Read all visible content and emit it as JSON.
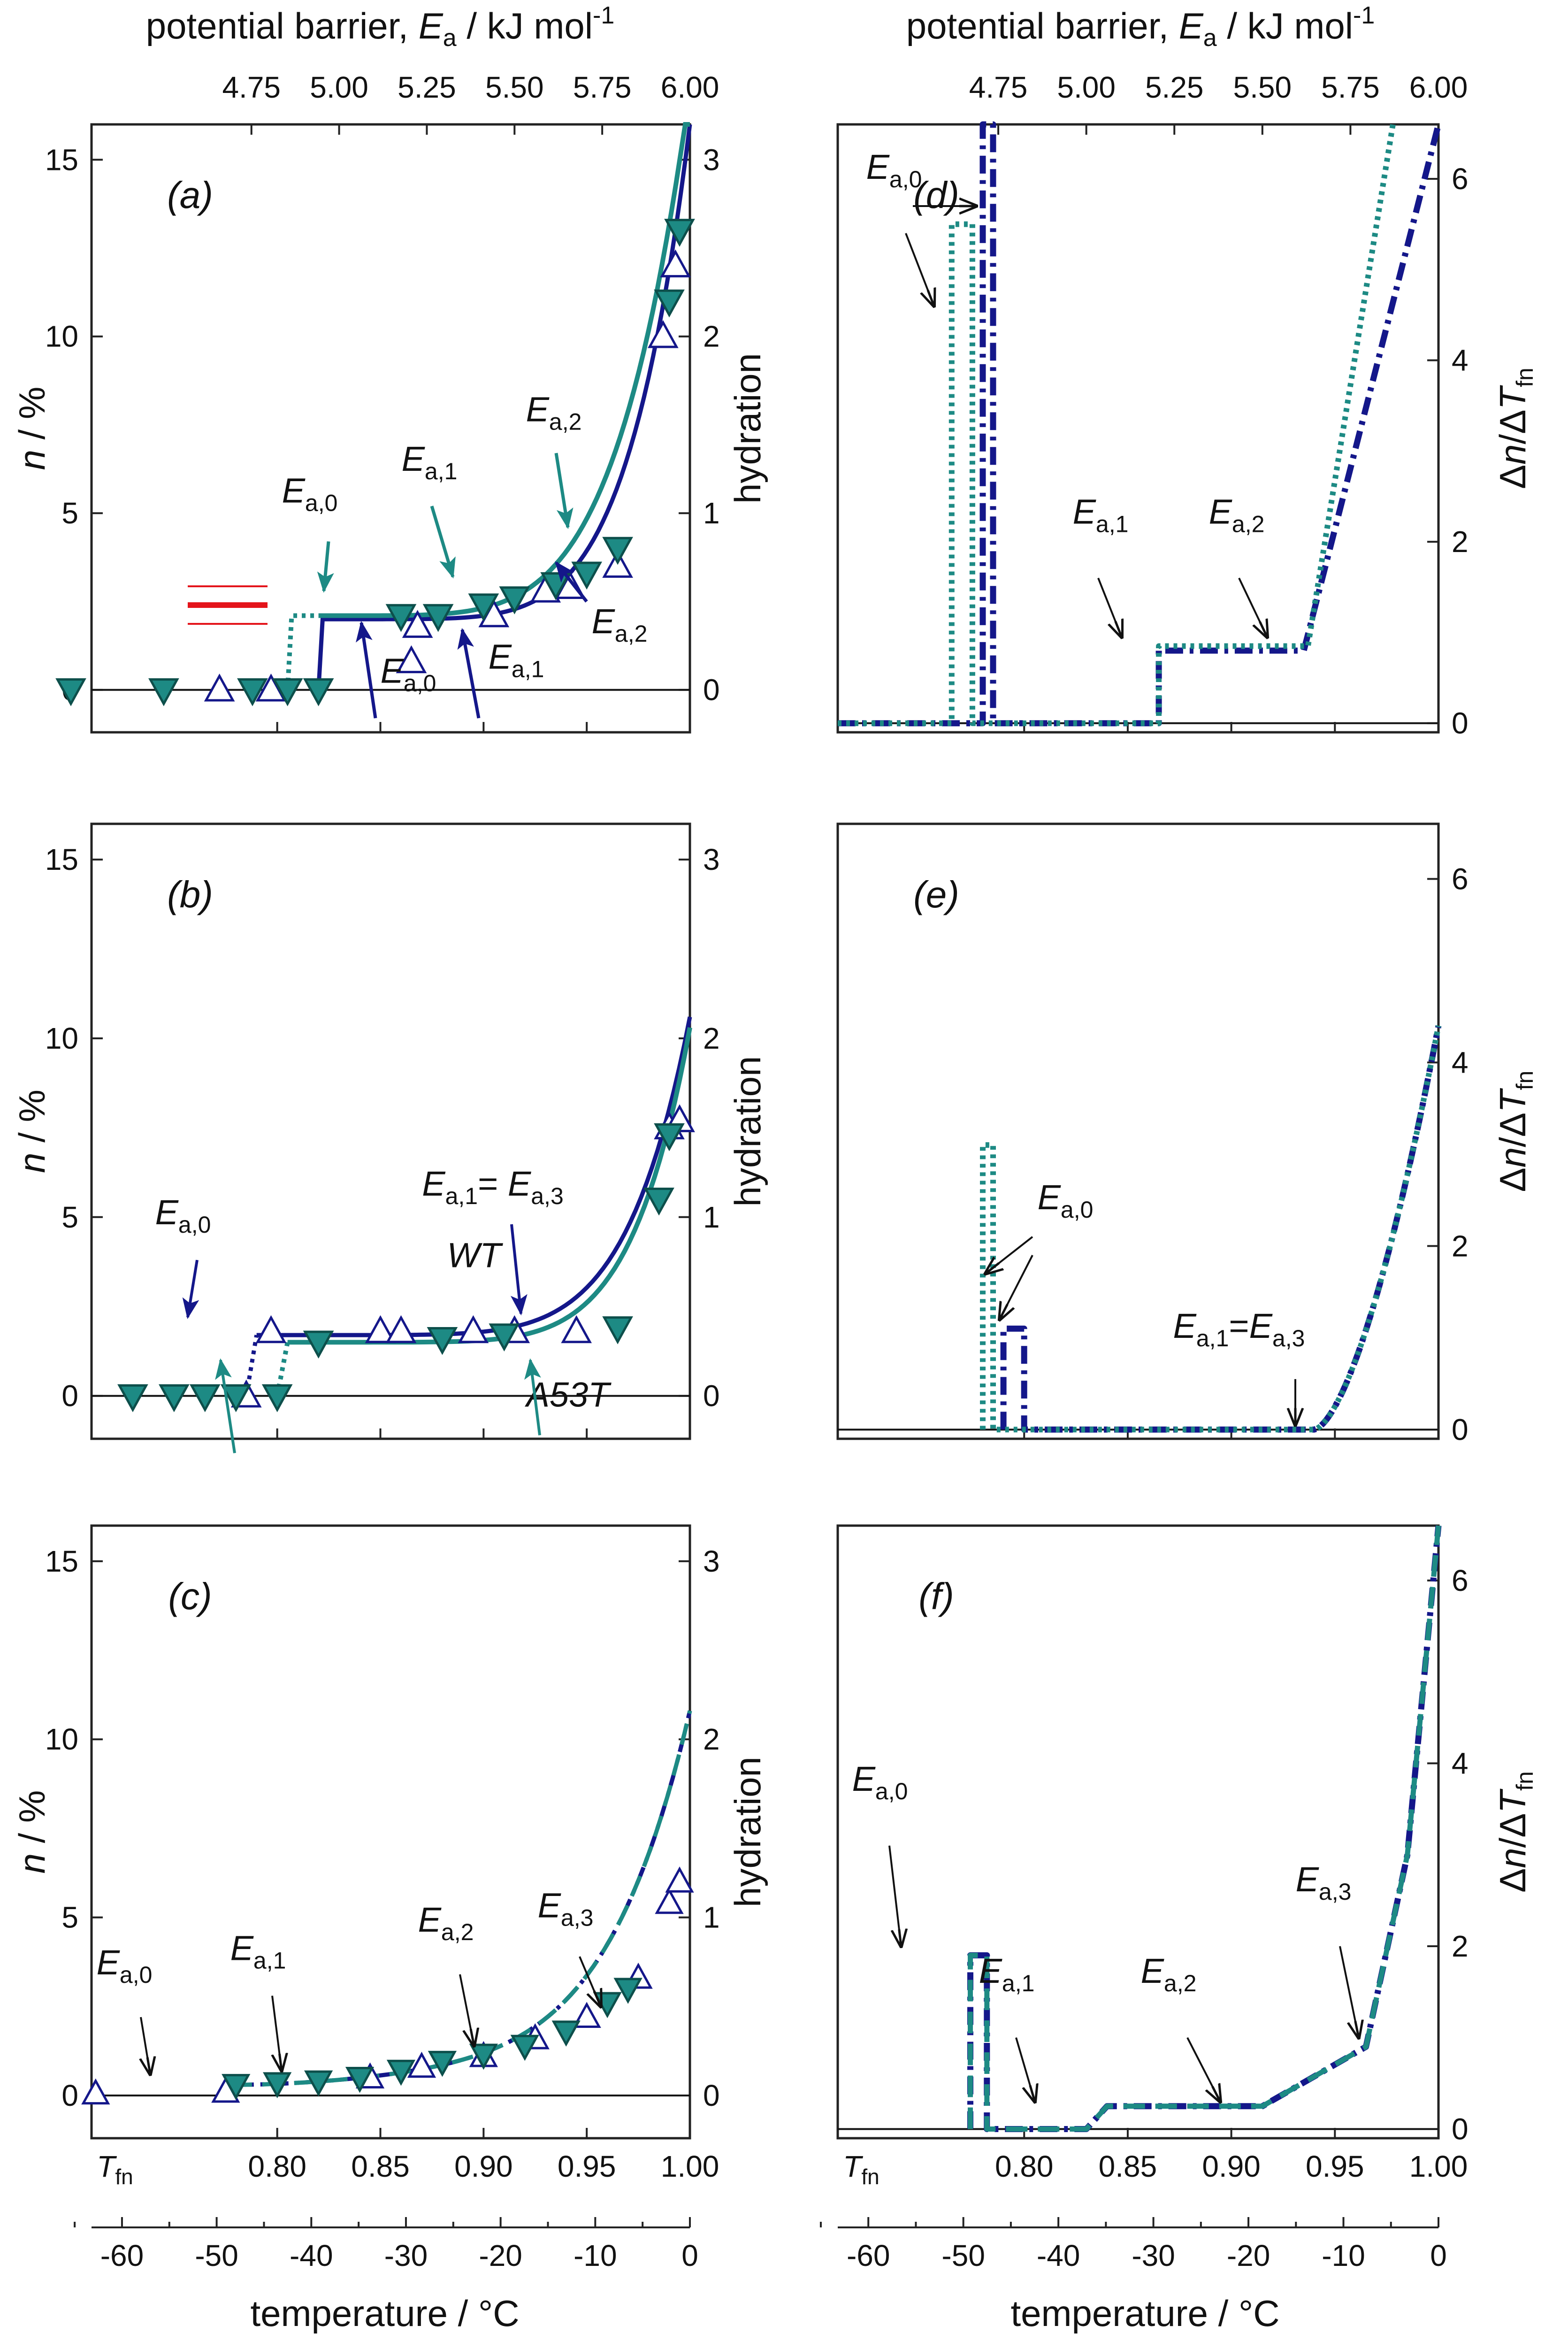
{
  "colors": {
    "wt": "#14178a",
    "a53t": "#1d8a84",
    "red": "#e4141b",
    "axis": "#222222",
    "arrow_black": "#111111"
  },
  "axes": {
    "top_title_prefix": "potential barrier, ",
    "top_title_var": "E",
    "top_title_sub": "a",
    "top_title_unit": " / kJ mol",
    "top_title_exp": "-1",
    "top_ticks": [
      "4.75",
      "5.00",
      "5.25",
      "5.50",
      "5.75",
      "6.00"
    ],
    "mid_ticks_first": "T",
    "mid_ticks_first_sub": "fn",
    "mid_ticks": [
      "0.80",
      "0.85",
      "0.90",
      "0.95",
      "1.00"
    ],
    "bottom_title": "temperature / °C",
    "bottom_ticks": [
      "-60",
      "-50",
      "-40",
      "-30",
      "-20",
      "-10",
      "0"
    ],
    "left_ylabel_var": "n",
    "left_ylabel_unit": " / %",
    "left_yticks": [
      "0",
      "5",
      "10",
      "15"
    ],
    "hydration_label": "hydration",
    "hydration_ticks": [
      "0",
      "1",
      "2",
      "3"
    ],
    "right_ylabel_d": "Δ",
    "right_ylabel_n": "n",
    "right_ylabel_slash": "/Δ",
    "right_ylabel_T": "T",
    "right_ylabel_sub": "fn",
    "deriv_ticks": [
      "0",
      "2",
      "4",
      "6"
    ]
  },
  "annotations": {
    "E": "E",
    "a0": "a,0",
    "a1": "a,1",
    "a2": "a,2",
    "a3": "a,3",
    "eq_spaced": "= ",
    "eq": "=",
    "wt": "WT",
    "a53t": "A53T"
  },
  "panels": {
    "a": {
      "tag": "(a)"
    },
    "b": {
      "tag": "(b)"
    },
    "c": {
      "tag": "(c)"
    },
    "d": {
      "tag": "(d)"
    },
    "e": {
      "tag": "(e)"
    },
    "f": {
      "tag": "(f)"
    }
  },
  "chart_data": [
    {
      "panel": "a",
      "type": "scatter",
      "x_axis": "T/Tfn",
      "xlim": [
        0.71,
        1.0
      ],
      "ylim": [
        -1.2,
        16
      ],
      "y2_label": "hydration",
      "series": [
        {
          "name": "WT",
          "marker": "open-triangle-up",
          "x": [
            0.772,
            0.797,
            0.865,
            0.868,
            0.905,
            0.93,
            0.942,
            0.965,
            0.987,
            0.993
          ],
          "y": [
            0,
            0,
            0.8,
            1.8,
            2.1,
            2.8,
            2.9,
            3.5,
            10,
            12
          ]
        },
        {
          "name": "A53T",
          "marker": "filled-triangle-down",
          "x": [
            0.7,
            0.745,
            0.788,
            0.805,
            0.82,
            0.86,
            0.878,
            0.9,
            0.915,
            0.935,
            0.95,
            0.965,
            0.99,
            0.995
          ],
          "y": [
            0,
            0,
            0,
            0,
            0,
            2.1,
            2.1,
            2.4,
            2.6,
            3.0,
            3.3,
            4.0,
            11,
            13
          ]
        }
      ]
    },
    {
      "panel": "b",
      "type": "scatter",
      "x_axis": "T/Tfn",
      "xlim": [
        0.71,
        1.0
      ],
      "ylim": [
        -1.2,
        16
      ],
      "series": [
        {
          "name": "WT",
          "marker": "open-triangle-up",
          "x": [
            0.785,
            0.797,
            0.85,
            0.86,
            0.895,
            0.915,
            0.945,
            0.99,
            0.995
          ],
          "y": [
            0,
            1.8,
            1.8,
            1.8,
            1.8,
            1.8,
            1.8,
            7.5,
            7.7
          ]
        },
        {
          "name": "A53T",
          "marker": "filled-triangle-down",
          "x": [
            0.73,
            0.75,
            0.765,
            0.78,
            0.8,
            0.82,
            0.88,
            0.91,
            0.965,
            0.985,
            0.99
          ],
          "y": [
            0,
            0,
            0,
            0,
            0,
            1.5,
            1.6,
            1.7,
            1.9,
            5.5,
            7.3
          ]
        }
      ]
    },
    {
      "panel": "c",
      "type": "scatter",
      "x_axis": "T/Tfn",
      "xlim": [
        0.71,
        1.0
      ],
      "ylim": [
        -1.2,
        16
      ],
      "series": [
        {
          "name": "WT",
          "marker": "open-triangle-up",
          "x": [
            0.712,
            0.775,
            0.845,
            0.87,
            0.9,
            0.925,
            0.95,
            0.975,
            0.99,
            0.995
          ],
          "y": [
            0.05,
            0.1,
            0.5,
            0.8,
            1.1,
            1.6,
            2.2,
            3.3,
            5.4,
            6.0
          ]
        },
        {
          "name": "A53T",
          "marker": "filled-triangle-down",
          "x": [
            0.78,
            0.8,
            0.82,
            0.84,
            0.86,
            0.88,
            0.9,
            0.92,
            0.94,
            0.96,
            0.97
          ],
          "y": [
            0.3,
            0.35,
            0.4,
            0.5,
            0.7,
            0.95,
            1.15,
            1.4,
            1.8,
            2.6,
            3.0
          ]
        }
      ]
    },
    {
      "panel": "d",
      "type": "line",
      "x_axis": "T/Tfn",
      "xlim": [
        0.71,
        1.0
      ],
      "ylim": [
        -0.1,
        6.6
      ],
      "series": [
        {
          "name": "WT",
          "style": "dash-dot",
          "x": [
            0.71,
            0.78,
            0.78,
            0.785,
            0.785,
            0.865,
            0.865,
            0.935,
            1.0
          ],
          "y": [
            0,
            0,
            6.6,
            6.6,
            0,
            0,
            0.8,
            0.8,
            6.6
          ]
        },
        {
          "name": "A53T",
          "style": "dotted",
          "x": [
            0.71,
            0.765,
            0.765,
            0.77,
            0.775,
            0.775,
            0.865,
            0.865,
            0.937,
            0.978
          ],
          "y": [
            0,
            0,
            5.5,
            5.5,
            5.5,
            0,
            0,
            0.85,
            0.85,
            6.6
          ]
        }
      ]
    },
    {
      "panel": "e",
      "type": "line",
      "x_axis": "T/Tfn",
      "xlim": [
        0.71,
        1.0
      ],
      "ylim": [
        -0.1,
        6.6
      ],
      "series": [
        {
          "name": "WT",
          "style": "dash-dot",
          "x": [
            0.79,
            0.79,
            0.8,
            0.8,
            0.94,
            1.0
          ],
          "y": [
            0,
            1.1,
            1.1,
            0,
            0,
            4.4
          ]
        },
        {
          "name": "A53T",
          "style": "dotted",
          "x": [
            0.78,
            0.78,
            0.785,
            0.785,
            0.94,
            1.0
          ],
          "y": [
            0,
            3.1,
            3.1,
            0,
            0,
            4.4
          ]
        }
      ]
    },
    {
      "panel": "f",
      "type": "line",
      "x_axis": "T/Tfn",
      "xlim": [
        0.71,
        1.0
      ],
      "ylim": [
        -0.1,
        6.6
      ],
      "series": [
        {
          "name": "WT",
          "style": "dash-dot",
          "x": [
            0.774,
            0.774,
            0.782,
            0.782,
            0.83,
            0.84,
            0.915,
            0.965,
            0.985,
            1.0
          ],
          "y": [
            0,
            1.9,
            1.9,
            0,
            0,
            0.25,
            0.25,
            0.9,
            3.0,
            6.6
          ]
        },
        {
          "name": "A53T",
          "style": "dashed",
          "x": [
            0.774,
            0.774,
            0.782,
            0.782,
            0.83,
            0.84,
            0.915,
            0.965,
            0.985,
            1.0
          ],
          "y": [
            0,
            1.9,
            1.9,
            0,
            0,
            0.25,
            0.25,
            0.9,
            3.0,
            6.6
          ]
        }
      ]
    }
  ]
}
